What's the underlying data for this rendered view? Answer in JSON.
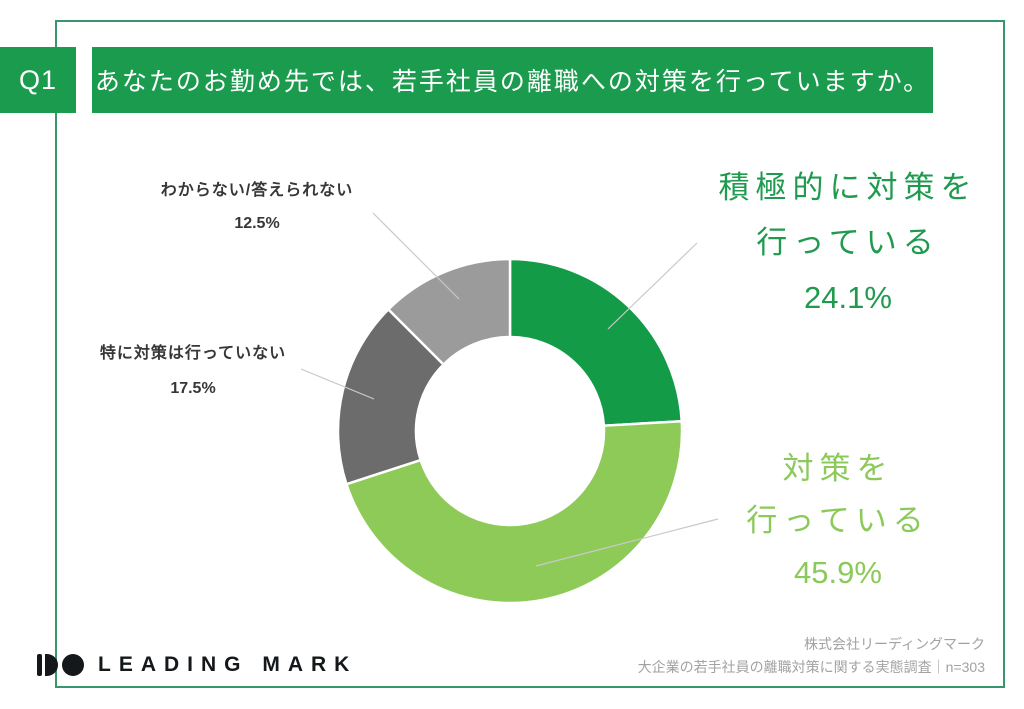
{
  "header": {
    "question_number": "Q1",
    "question_text": "あなたのお勤め先では、若手社員の離職への対策を行っていますか。"
  },
  "colors": {
    "brand_green": "#1b9b4e",
    "frame_green": "#35976b",
    "leader_line": "#c9c9c9"
  },
  "chart_data": {
    "type": "pie",
    "subtype": "donut",
    "unit": "%",
    "start_angle": "top",
    "direction": "clockwise",
    "donut_hole_ratio": 0.55,
    "segments": [
      {
        "label": "積極的に対策を行っている",
        "label_lines": [
          "積極的に対策を",
          "行っている"
        ],
        "value": 24.1,
        "display": "24.1%",
        "color": "#149b47",
        "label_color": "#1f9a4f"
      },
      {
        "label": "対策を行っている",
        "label_lines": [
          "対策を",
          "行っている"
        ],
        "value": 45.9,
        "display": "45.9%",
        "color": "#8eca58",
        "label_color": "#8cc95b"
      },
      {
        "label": "特に対策は行っていない",
        "label_lines": [
          "特に対策は行っていない"
        ],
        "value": 17.5,
        "display": "17.5%",
        "color": "#6c6c6c",
        "label_color": "#373737"
      },
      {
        "label": "わからない/答えられない",
        "label_lines": [
          "わからない/答えられない"
        ],
        "value": 12.5,
        "display": "12.5%",
        "color": "#9b9b9b",
        "label_color": "#373737"
      }
    ]
  },
  "footer": {
    "logo_text": "LEADING MARK",
    "company": "株式会社リーディングマーク",
    "survey_note": "大企業の若手社員の離職対策に関する実態調査｜n=303"
  }
}
